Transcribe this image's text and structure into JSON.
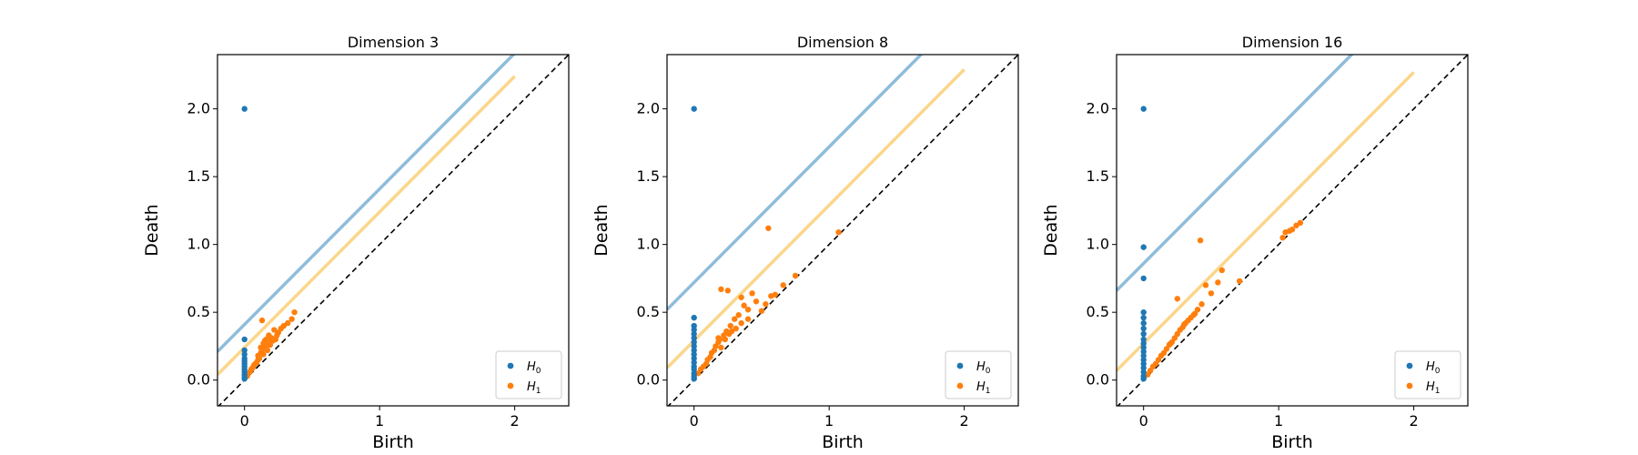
{
  "chart_data": [
    {
      "type": "scatter",
      "title": "Dimension 3",
      "xlabel": "Birth",
      "ylabel": "Death",
      "xlim": [
        -0.2,
        2.4
      ],
      "ylim": [
        -0.19,
        2.4
      ],
      "xticks": [
        "0",
        "1",
        "2"
      ],
      "yticks": [
        "0.0",
        "0.5",
        "1.0",
        "1.5",
        "2.0"
      ],
      "legend_position": "lower-right",
      "reference_lines": [
        {
          "kind": "diagonal",
          "offset": 0,
          "style": "dashed",
          "color": "#000000"
        },
        {
          "kind": "band",
          "series": "H0",
          "offset": 0.41,
          "color": "#8fbcdb"
        },
        {
          "kind": "band",
          "series": "H1",
          "offset": 0.24,
          "color": "#fbd68a",
          "x_end": 2.0
        }
      ],
      "series": [
        {
          "name": "H",
          "subscript": "0",
          "color": "#1f77b4",
          "x": [
            0,
            0,
            0,
            0,
            0,
            0,
            0,
            0,
            0,
            0,
            0,
            0,
            0
          ],
          "y": [
            2.0,
            0.3,
            0.22,
            0.19,
            0.16,
            0.14,
            0.12,
            0.1,
            0.08,
            0.06,
            0.04,
            0.02,
            0.01
          ]
        },
        {
          "name": "H",
          "subscript": "1",
          "color": "#ff7f0e",
          "x": [
            0.02,
            0.04,
            0.05,
            0.06,
            0.07,
            0.08,
            0.09,
            0.1,
            0.1,
            0.11,
            0.12,
            0.12,
            0.13,
            0.14,
            0.14,
            0.15,
            0.16,
            0.17,
            0.18,
            0.18,
            0.19,
            0.2,
            0.21,
            0.22,
            0.23,
            0.24,
            0.25,
            0.27,
            0.29,
            0.32,
            0.35,
            0.37,
            0.13,
            0.15,
            0.17
          ],
          "y": [
            0.03,
            0.06,
            0.08,
            0.09,
            0.11,
            0.12,
            0.13,
            0.15,
            0.18,
            0.16,
            0.2,
            0.24,
            0.22,
            0.27,
            0.19,
            0.25,
            0.3,
            0.22,
            0.28,
            0.33,
            0.26,
            0.31,
            0.29,
            0.37,
            0.3,
            0.33,
            0.35,
            0.38,
            0.4,
            0.42,
            0.45,
            0.5,
            0.44,
            0.29,
            0.26
          ]
        }
      ]
    },
    {
      "type": "scatter",
      "title": "Dimension 8",
      "xlabel": "Birth",
      "ylabel": "Death",
      "xlim": [
        -0.2,
        2.4
      ],
      "ylim": [
        -0.19,
        2.4
      ],
      "xticks": [
        "0",
        "1",
        "2"
      ],
      "yticks": [
        "0.0",
        "0.5",
        "1.0",
        "1.5",
        "2.0"
      ],
      "legend_position": "lower-right",
      "reference_lines": [
        {
          "kind": "diagonal",
          "offset": 0,
          "style": "dashed",
          "color": "#000000"
        },
        {
          "kind": "band",
          "series": "H0",
          "offset": 0.72,
          "color": "#8fbcdb"
        },
        {
          "kind": "band",
          "series": "H1",
          "offset": 0.29,
          "color": "#fbd68a",
          "x_end": 2.0
        }
      ],
      "series": [
        {
          "name": "H",
          "subscript": "0",
          "color": "#1f77b4",
          "x": [
            0,
            0,
            0,
            0,
            0,
            0,
            0,
            0,
            0,
            0,
            0,
            0,
            0,
            0,
            0,
            0,
            0
          ],
          "y": [
            2.0,
            0.46,
            0.4,
            0.37,
            0.34,
            0.31,
            0.28,
            0.25,
            0.22,
            0.19,
            0.16,
            0.13,
            0.1,
            0.08,
            0.05,
            0.03,
            0.01
          ]
        },
        {
          "name": "H",
          "subscript": "1",
          "color": "#ff7f0e",
          "x": [
            0.03,
            0.05,
            0.07,
            0.09,
            0.1,
            0.12,
            0.13,
            0.15,
            0.16,
            0.18,
            0.19,
            0.2,
            0.22,
            0.23,
            0.24,
            0.26,
            0.27,
            0.28,
            0.3,
            0.31,
            0.33,
            0.35,
            0.37,
            0.4,
            0.43,
            0.46,
            0.5,
            0.53,
            0.57,
            0.6,
            0.66,
            0.75,
            1.07,
            0.55,
            0.2,
            0.25,
            0.35,
            0.4,
            0.18
          ],
          "y": [
            0.05,
            0.08,
            0.1,
            0.12,
            0.15,
            0.17,
            0.2,
            0.22,
            0.25,
            0.28,
            0.3,
            0.24,
            0.33,
            0.3,
            0.36,
            0.34,
            0.4,
            0.36,
            0.45,
            0.38,
            0.48,
            0.42,
            0.55,
            0.52,
            0.64,
            0.58,
            0.51,
            0.56,
            0.62,
            0.63,
            0.7,
            0.77,
            1.09,
            1.12,
            0.67,
            0.66,
            0.61,
            0.45,
            0.31
          ]
        }
      ]
    },
    {
      "type": "scatter",
      "title": "Dimension 16",
      "xlabel": "Birth",
      "ylabel": "Death",
      "xlim": [
        -0.2,
        2.4
      ],
      "ylim": [
        -0.19,
        2.4
      ],
      "xticks": [
        "0",
        "1",
        "2"
      ],
      "yticks": [
        "0.0",
        "0.5",
        "1.0",
        "1.5",
        "2.0"
      ],
      "legend_position": "lower-right",
      "reference_lines": [
        {
          "kind": "diagonal",
          "offset": 0,
          "style": "dashed",
          "color": "#000000"
        },
        {
          "kind": "band",
          "series": "H0",
          "offset": 0.86,
          "color": "#8fbcdb"
        },
        {
          "kind": "band",
          "series": "H1",
          "offset": 0.27,
          "color": "#fbd68a",
          "x_end": 2.0
        }
      ],
      "series": [
        {
          "name": "H",
          "subscript": "0",
          "color": "#1f77b4",
          "x": [
            0,
            0,
            0,
            0,
            0,
            0,
            0,
            0,
            0,
            0,
            0,
            0,
            0,
            0,
            0,
            0,
            0,
            0,
            0
          ],
          "y": [
            2.0,
            0.98,
            0.75,
            0.5,
            0.46,
            0.42,
            0.38,
            0.34,
            0.3,
            0.27,
            0.24,
            0.21,
            0.18,
            0.15,
            0.12,
            0.09,
            0.06,
            0.03,
            0.01
          ]
        },
        {
          "name": "H",
          "subscript": "1",
          "color": "#ff7f0e",
          "x": [
            0.03,
            0.05,
            0.07,
            0.09,
            0.11,
            0.13,
            0.15,
            0.17,
            0.19,
            0.21,
            0.23,
            0.25,
            0.27,
            0.29,
            0.31,
            0.33,
            0.35,
            0.37,
            0.4,
            0.43,
            0.46,
            0.5,
            0.55,
            0.58,
            0.25,
            0.42,
            0.71,
            1.03,
            1.05,
            1.08,
            1.1,
            1.13,
            1.16,
            0.3,
            0.38,
            0.2
          ],
          "y": [
            0.04,
            0.07,
            0.1,
            0.12,
            0.15,
            0.18,
            0.2,
            0.23,
            0.26,
            0.28,
            0.31,
            0.34,
            0.37,
            0.39,
            0.42,
            0.44,
            0.46,
            0.48,
            0.52,
            0.56,
            0.7,
            0.64,
            0.72,
            0.81,
            0.6,
            1.03,
            0.73,
            1.05,
            1.09,
            1.1,
            1.11,
            1.14,
            1.16,
            0.41,
            0.49,
            0.27
          ]
        }
      ]
    }
  ]
}
